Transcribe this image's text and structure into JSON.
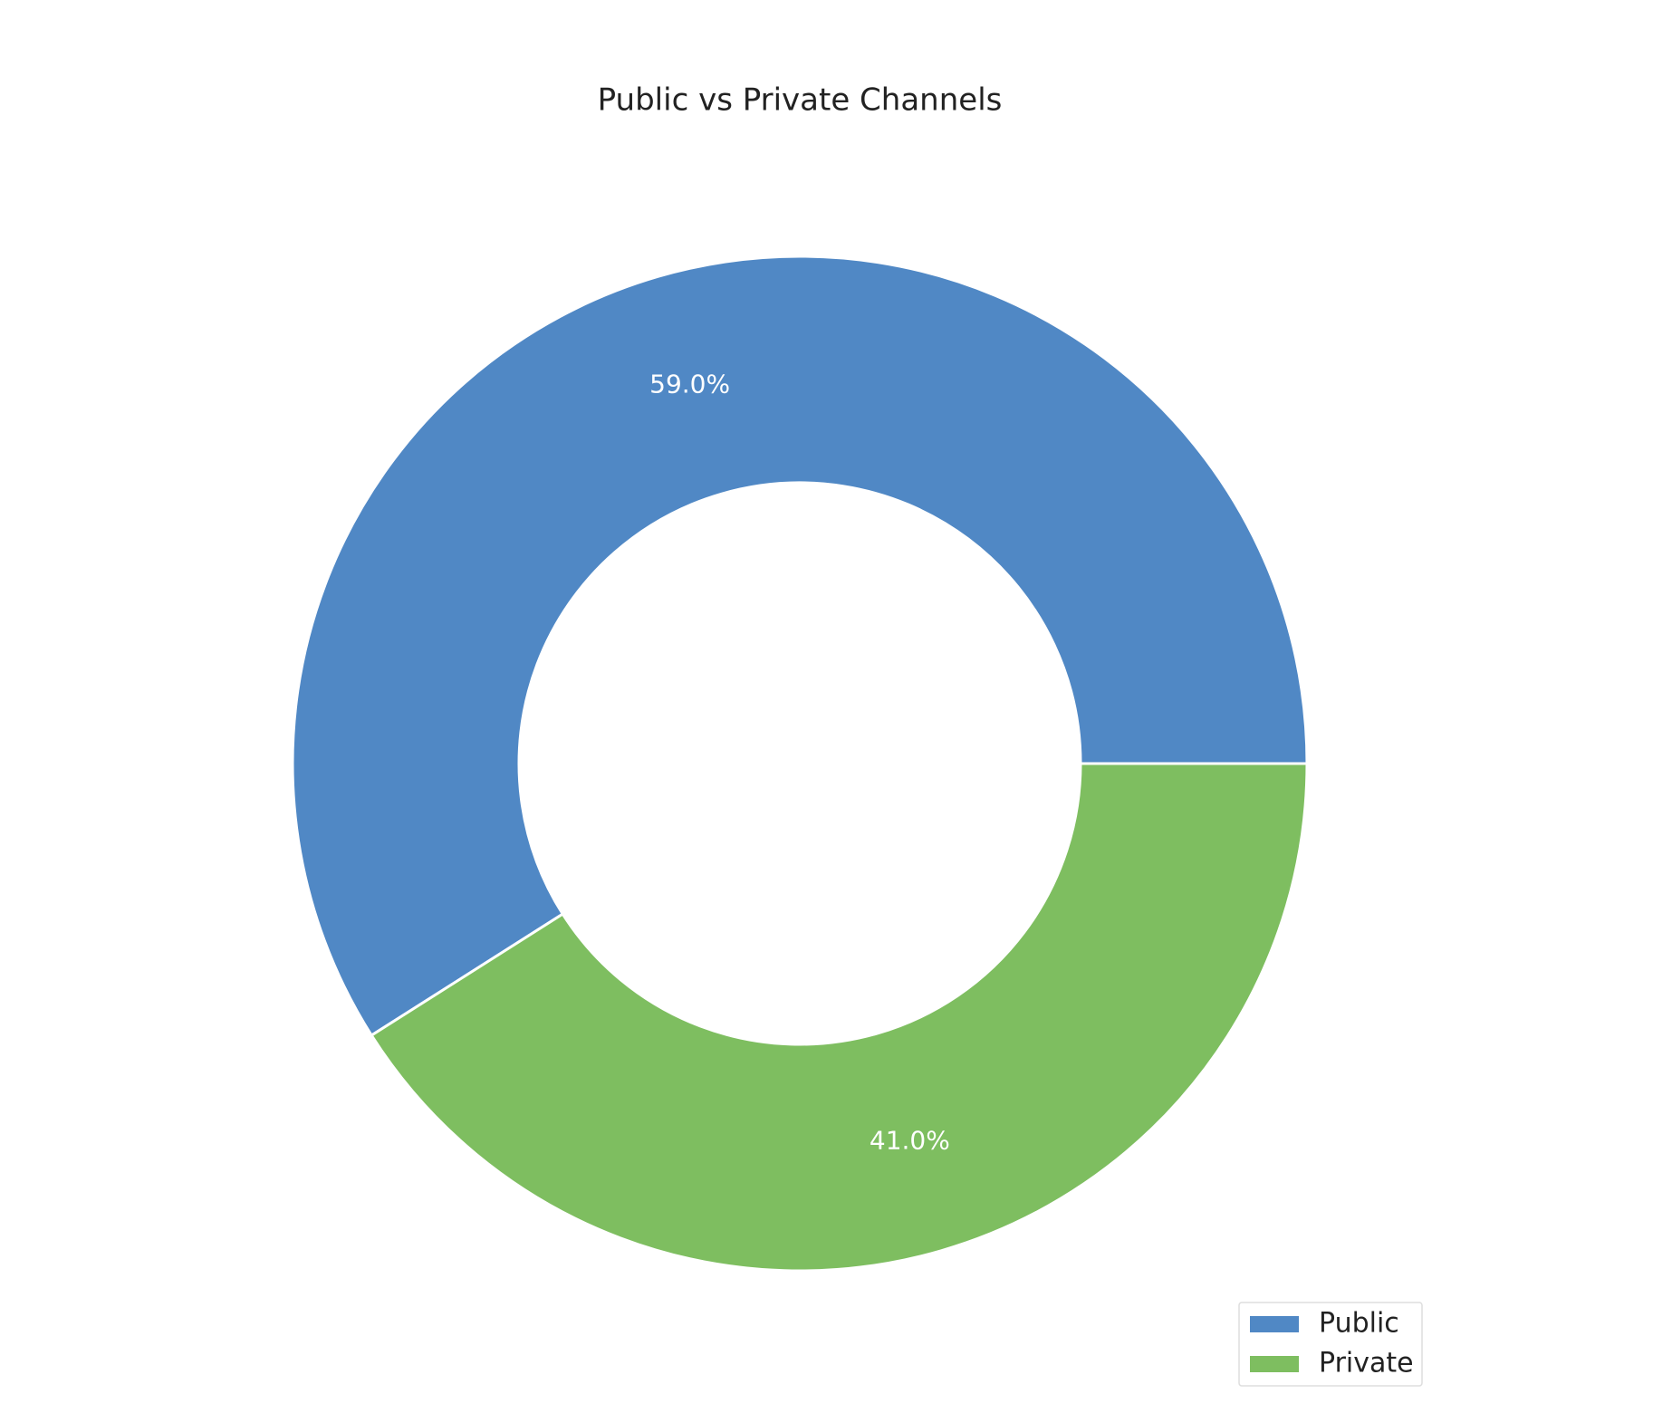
{
  "chart_data": {
    "type": "donut",
    "title": "Public vs Private Channels",
    "categories": [
      "Public",
      "Private"
    ],
    "values": [
      59.0,
      41.0
    ],
    "value_labels": [
      "59.0%",
      "41.0%"
    ],
    "colors": [
      "#5088c5",
      "#7ebe60"
    ],
    "start_angle": 0,
    "counterclock": true,
    "legend": "lower right"
  }
}
